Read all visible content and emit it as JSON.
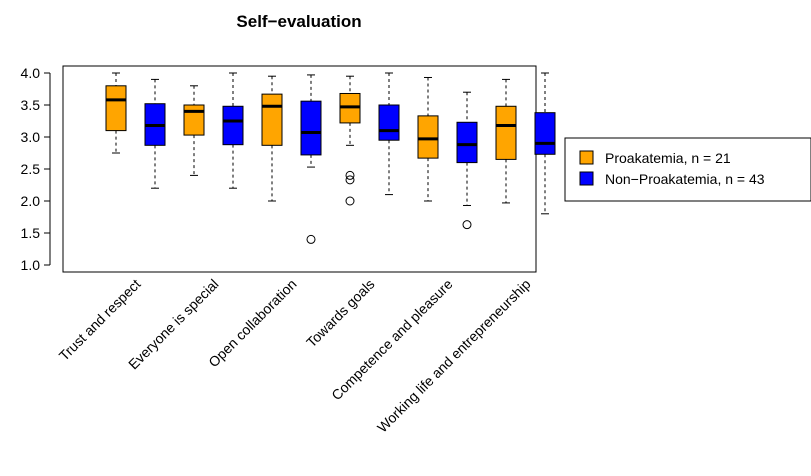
{
  "chart_data": {
    "type": "boxplot",
    "title": "Self−evaluation",
    "xlabel": "",
    "ylabel": "",
    "ylim": [
      1.0,
      4.0
    ],
    "yticks": [
      "1.0",
      "1.5",
      "2.0",
      "2.5",
      "3.0",
      "3.5",
      "4.0"
    ],
    "grid": false,
    "legend_position": "right",
    "categories": [
      "Trust and respect",
      "Everyone is special",
      "Open collaboration",
      "Towards goals",
      "Competence and pleasure",
      "Working life and entrepreneurship"
    ],
    "series": [
      {
        "name": "Proakatemia, n = 21",
        "color": "#FFA500",
        "boxes": [
          {
            "min": 2.75,
            "q1": 3.1,
            "median": 3.58,
            "q3": 3.8,
            "max": 4.0,
            "outliers": []
          },
          {
            "min": 2.4,
            "q1": 3.03,
            "median": 3.4,
            "q3": 3.5,
            "max": 3.8,
            "outliers": []
          },
          {
            "min": 2.0,
            "q1": 2.87,
            "median": 3.48,
            "q3": 3.67,
            "max": 3.95,
            "outliers": []
          },
          {
            "min": 2.87,
            "q1": 3.22,
            "median": 3.47,
            "q3": 3.68,
            "max": 3.95,
            "outliers": [
              2.4,
              2.33,
              2.0
            ]
          },
          {
            "min": 2.0,
            "q1": 2.67,
            "median": 2.97,
            "q3": 3.33,
            "max": 3.93,
            "outliers": []
          },
          {
            "min": 1.97,
            "q1": 2.65,
            "median": 3.18,
            "q3": 3.48,
            "max": 3.9,
            "outliers": []
          }
        ]
      },
      {
        "name": "Non−Proakatemia, n = 43",
        "color": "#0000FF",
        "boxes": [
          {
            "min": 2.2,
            "q1": 2.87,
            "median": 3.18,
            "q3": 3.52,
            "max": 3.9,
            "outliers": []
          },
          {
            "min": 2.2,
            "q1": 2.88,
            "median": 3.25,
            "q3": 3.48,
            "max": 4.0,
            "outliers": []
          },
          {
            "min": 2.53,
            "q1": 2.72,
            "median": 3.07,
            "q3": 3.56,
            "max": 3.97,
            "outliers": [
              1.4
            ]
          },
          {
            "min": 2.1,
            "q1": 2.95,
            "median": 3.1,
            "q3": 3.5,
            "max": 4.0,
            "outliers": []
          },
          {
            "min": 1.93,
            "q1": 2.6,
            "median": 2.88,
            "q3": 3.23,
            "max": 3.7,
            "outliers": [
              1.63
            ]
          },
          {
            "min": 1.8,
            "q1": 2.73,
            "median": 2.9,
            "q3": 3.38,
            "max": 4.0,
            "outliers": []
          }
        ]
      }
    ]
  }
}
